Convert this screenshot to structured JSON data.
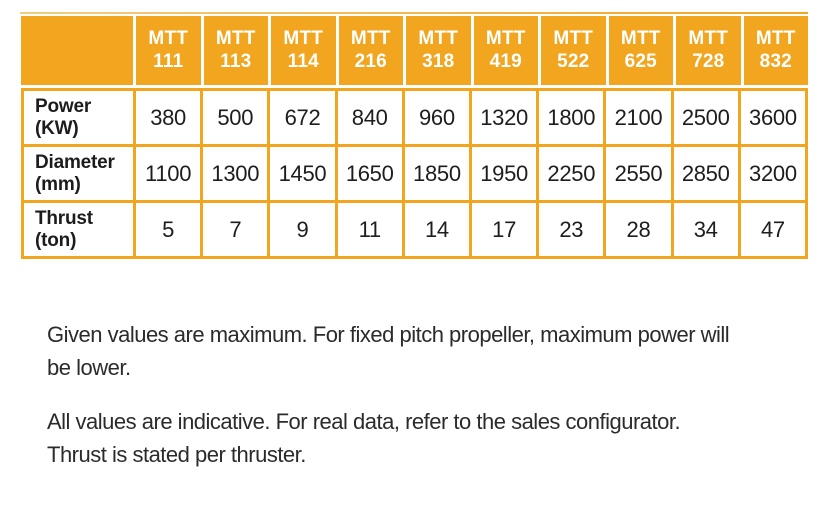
{
  "colors": {
    "accent": "#f2a51f",
    "top_rule_start": "#f0cd7e",
    "header_text": "#ffffff",
    "body_text": "#2b2b2b"
  },
  "table": {
    "corner_label": "",
    "columns": [
      {
        "l1": "MTT",
        "l2": "111"
      },
      {
        "l1": "MTT",
        "l2": "113"
      },
      {
        "l1": "MTT",
        "l2": "114"
      },
      {
        "l1": "MTT",
        "l2": "216"
      },
      {
        "l1": "MTT",
        "l2": "318"
      },
      {
        "l1": "MTT",
        "l2": "419"
      },
      {
        "l1": "MTT",
        "l2": "522"
      },
      {
        "l1": "MTT",
        "l2": "625"
      },
      {
        "l1": "MTT",
        "l2": "728"
      },
      {
        "l1": "MTT",
        "l2": "832"
      }
    ],
    "rows": [
      {
        "label": "Power",
        "unit": "(KW)",
        "values": [
          "380",
          "500",
          "672",
          "840",
          "960",
          "1320",
          "1800",
          "2100",
          "2500",
          "3600"
        ]
      },
      {
        "label": "Diameter",
        "unit": "(mm)",
        "values": [
          "1100",
          "1300",
          "1450",
          "1650",
          "1850",
          "1950",
          "2250",
          "2550",
          "2850",
          "3200"
        ]
      },
      {
        "label": "Thrust",
        "unit": "(ton)",
        "values": [
          "5",
          "7",
          "9",
          "11",
          "14",
          "17",
          "23",
          "28",
          "34",
          "47"
        ]
      }
    ]
  },
  "notes": [
    {
      "lines": [
        "Given values are maximum. For fixed pitch propeller, maximum power will",
        "be lower."
      ]
    },
    {
      "lines": [
        "All values are indicative. For real data, refer to the sales configurator.",
        "Thrust is stated per thruster."
      ]
    }
  ]
}
